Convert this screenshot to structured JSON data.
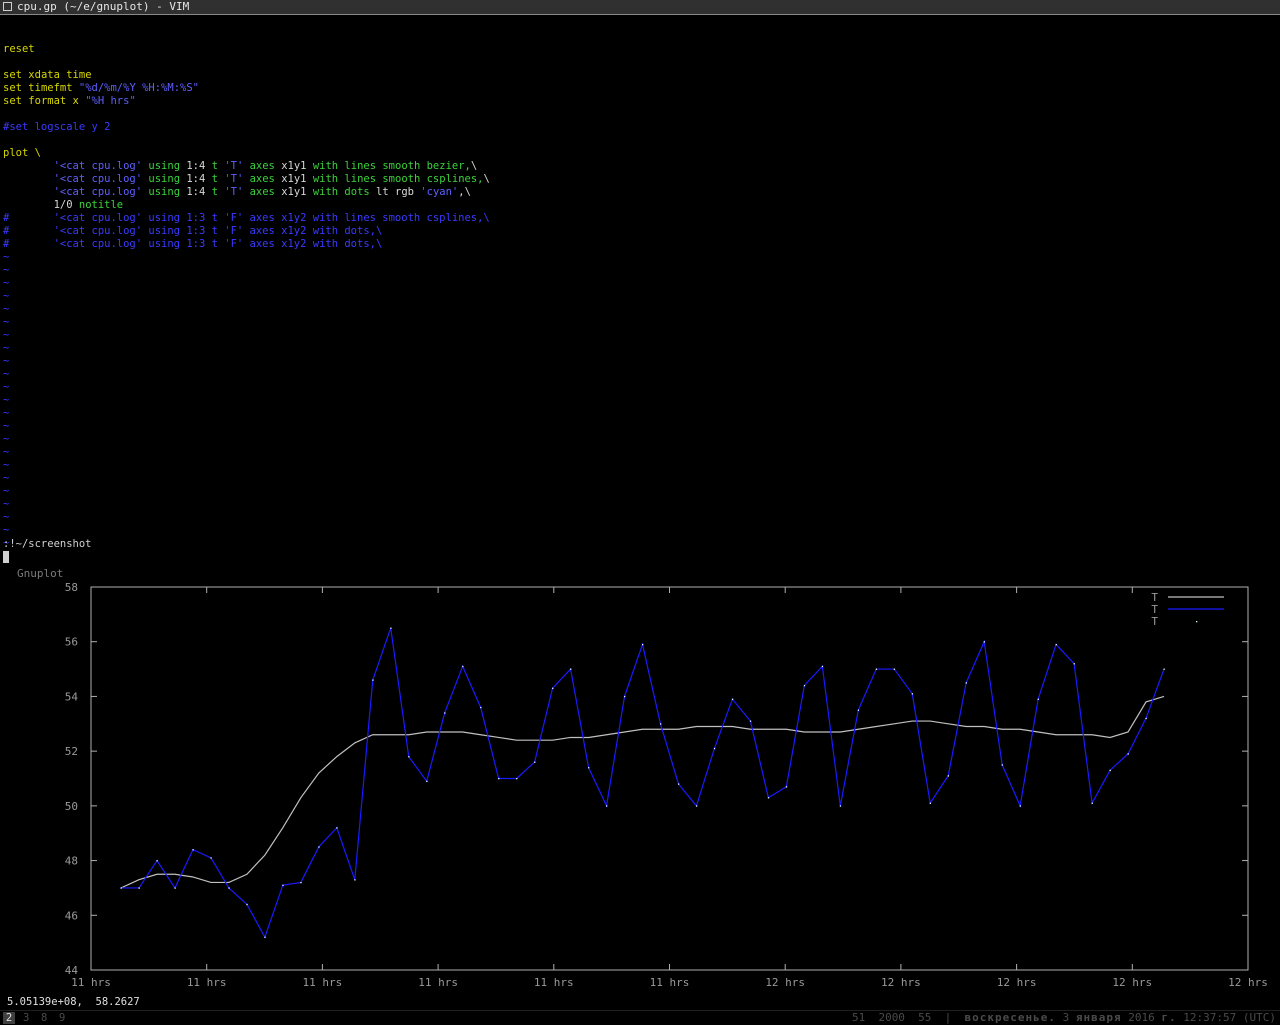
{
  "window": {
    "title": "cpu.gp (~/e/gnuplot) - VIM"
  },
  "editor": {
    "lines": [
      [],
      [
        {
          "t": "reset",
          "c": "kw"
        }
      ],
      [],
      [
        {
          "t": "set ",
          "c": "kw"
        },
        {
          "t": "xdata time",
          "c": "kw"
        }
      ],
      [
        {
          "t": "set ",
          "c": "kw"
        },
        {
          "t": "timefmt ",
          "c": "kw"
        },
        {
          "t": "\"%d/%m/%Y %H:%M:%S\"",
          "c": "str"
        }
      ],
      [
        {
          "t": "set ",
          "c": "kw"
        },
        {
          "t": "format x ",
          "c": "kw"
        },
        {
          "t": "\"%H hrs\"",
          "c": "str"
        }
      ],
      [],
      [
        {
          "t": "#set logscale y 2",
          "c": "cmt"
        }
      ],
      [],
      [
        {
          "t": "plot \\",
          "c": "kw"
        }
      ],
      [
        {
          "t": "        ",
          "c": "wht"
        },
        {
          "t": "'<cat cpu.log'",
          "c": "str"
        },
        {
          "t": " using ",
          "c": "grn"
        },
        {
          "t": "1:4",
          "c": "wht"
        },
        {
          "t": " t ",
          "c": "grn"
        },
        {
          "t": "'T'",
          "c": "str"
        },
        {
          "t": " axes ",
          "c": "grn"
        },
        {
          "t": "x1y1",
          "c": "wht"
        },
        {
          "t": " with lines smooth bezier,",
          "c": "grn"
        },
        {
          "t": "\\",
          "c": "wht"
        }
      ],
      [
        {
          "t": "        ",
          "c": "wht"
        },
        {
          "t": "'<cat cpu.log'",
          "c": "str"
        },
        {
          "t": " using ",
          "c": "grn"
        },
        {
          "t": "1:4",
          "c": "wht"
        },
        {
          "t": " t ",
          "c": "grn"
        },
        {
          "t": "'T'",
          "c": "str"
        },
        {
          "t": " axes ",
          "c": "grn"
        },
        {
          "t": "x1y1",
          "c": "wht"
        },
        {
          "t": " with lines smooth csplines,",
          "c": "grn"
        },
        {
          "t": "\\",
          "c": "wht"
        }
      ],
      [
        {
          "t": "        ",
          "c": "wht"
        },
        {
          "t": "'<cat cpu.log'",
          "c": "str"
        },
        {
          "t": " using ",
          "c": "grn"
        },
        {
          "t": "1:4",
          "c": "wht"
        },
        {
          "t": " t ",
          "c": "grn"
        },
        {
          "t": "'T'",
          "c": "str"
        },
        {
          "t": " axes ",
          "c": "grn"
        },
        {
          "t": "x1y1",
          "c": "wht"
        },
        {
          "t": " with dots ",
          "c": "grn"
        },
        {
          "t": "lt rgb ",
          "c": "wht"
        },
        {
          "t": "'cyan'",
          "c": "str"
        },
        {
          "t": ",\\",
          "c": "wht"
        }
      ],
      [
        {
          "t": "        ",
          "c": "wht"
        },
        {
          "t": "1/0 ",
          "c": "wht"
        },
        {
          "t": "notitle",
          "c": "grn"
        }
      ],
      [
        {
          "t": "#       '<cat cpu.log' using 1:3 t 'F' axes x1y2 with lines smooth csplines,\\",
          "c": "cmt"
        }
      ],
      [
        {
          "t": "#       '<cat cpu.log' using 1:3 t 'F' axes x1y2 with dots,\\",
          "c": "cmt"
        }
      ],
      [
        {
          "t": "#       '<cat cpu.log' using 1:3 t 'F' axes x1y2 with dots,\\",
          "c": "cmt"
        }
      ]
    ],
    "tilde_count": 23,
    "tilde_char": "~",
    "command_line": ":!~/screenshot"
  },
  "gnuplot": {
    "window_title": "Gnuplot",
    "coord_readout": "5.05139e+08,  58.2627"
  },
  "chart_data": {
    "type": "line",
    "x_tick_labels": [
      "11 hrs",
      "11 hrs",
      "11 hrs",
      "11 hrs",
      "11 hrs",
      "11 hrs",
      "12 hrs",
      "12 hrs",
      "12 hrs",
      "12 hrs",
      "12 hrs"
    ],
    "y_ticks": [
      44,
      46,
      48,
      50,
      52,
      54,
      56,
      58
    ],
    "ylim": [
      44,
      58
    ],
    "legend_position": "top-right",
    "series": [
      {
        "name": "T",
        "color": "#c0c0c0",
        "style": "bezier",
        "values": [
          47.0,
          47.3,
          47.5,
          47.5,
          47.4,
          47.2,
          47.2,
          47.5,
          48.2,
          49.2,
          50.3,
          51.2,
          51.8,
          52.3,
          52.6,
          52.6,
          52.6,
          52.7,
          52.7,
          52.7,
          52.6,
          52.5,
          52.4,
          52.4,
          52.4,
          52.5,
          52.5,
          52.6,
          52.7,
          52.8,
          52.8,
          52.8,
          52.9,
          52.9,
          52.9,
          52.8,
          52.8,
          52.8,
          52.7,
          52.7,
          52.7,
          52.8,
          52.9,
          53.0,
          53.1,
          53.1,
          53.0,
          52.9,
          52.9,
          52.8,
          52.8,
          52.7,
          52.6,
          52.6,
          52.6,
          52.5,
          52.7,
          53.8,
          54.0
        ]
      },
      {
        "name": "T",
        "color": "#1a1aff",
        "style": "csplines",
        "values": [
          47.0,
          47.0,
          48.0,
          47.0,
          48.4,
          48.1,
          47.0,
          46.4,
          45.2,
          47.1,
          47.2,
          48.5,
          49.2,
          47.3,
          54.6,
          56.5,
          51.8,
          50.9,
          53.4,
          55.1,
          53.6,
          51.0,
          51.0,
          51.6,
          54.3,
          55.0,
          51.4,
          50.0,
          54.0,
          55.9,
          53.0,
          50.8,
          50.0,
          52.1,
          53.9,
          53.1,
          50.3,
          50.7,
          54.4,
          55.1,
          50.0,
          53.5,
          55.0,
          55.0,
          54.1,
          50.1,
          51.1,
          54.5,
          56.0,
          51.5,
          50.0,
          53.9,
          55.9,
          55.2,
          50.1,
          51.3,
          51.9,
          53.2,
          55.0
        ]
      }
    ],
    "dots_series": {
      "name": "T",
      "color": "cyan"
    }
  },
  "statusbar": {
    "workspaces": [
      "2",
      "3",
      "8",
      "9"
    ],
    "active_workspace": "2",
    "sysinfo_prefix": "51  2000  55  |  ",
    "day": "воскресенье.",
    "date_mid": " 3 ",
    "month": "января",
    "year": " 2016 ",
    "year_suffix": "г.",
    "time": " 12:37:57 (UTC)"
  }
}
